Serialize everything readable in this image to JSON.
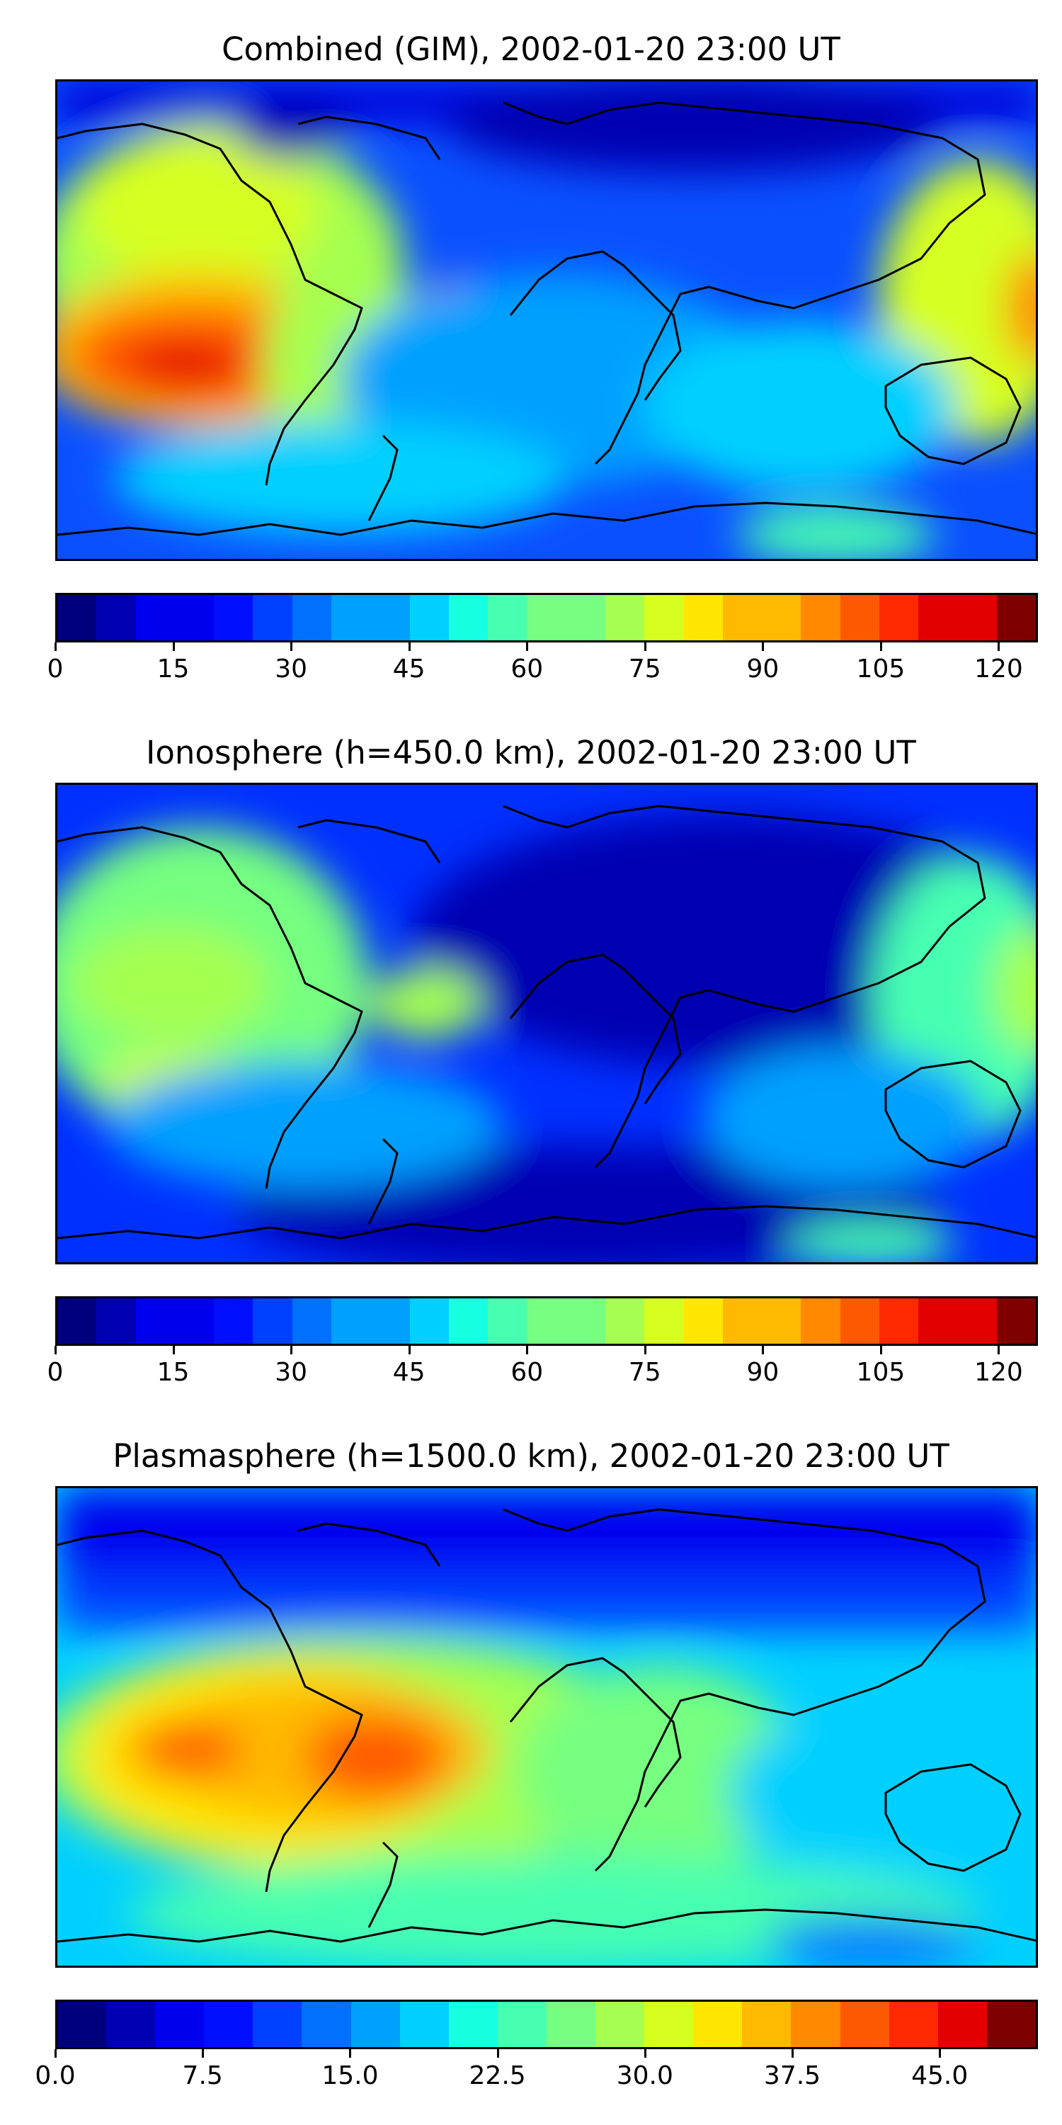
{
  "panels": [
    {
      "title": "Combined (GIM), 2002-01-20 23:00 UT",
      "colorbar": {
        "min": 0,
        "max": 125,
        "levels": 25,
        "ticks": [
          "0",
          "15",
          "30",
          "45",
          "60",
          "75",
          "90",
          "105",
          "120"
        ],
        "tick_values": [
          0,
          15,
          30,
          45,
          60,
          75,
          90,
          105,
          120
        ]
      }
    },
    {
      "title": "Ionosphere  (h=450.0 km), 2002-01-20 23:00 UT",
      "colorbar": {
        "min": 0,
        "max": 125,
        "levels": 25,
        "ticks": [
          "0",
          "15",
          "30",
          "45",
          "60",
          "75",
          "90",
          "105",
          "120"
        ],
        "tick_values": [
          0,
          15,
          30,
          45,
          60,
          75,
          90,
          105,
          120
        ]
      }
    },
    {
      "title": "Plasmasphere (h=1500.0 km), 2002-01-20 23:00 UT",
      "colorbar": {
        "min": 0,
        "max": 50,
        "levels": 20,
        "ticks": [
          "0.0",
          "7.5",
          "15.0",
          "22.5",
          "30.0",
          "37.5",
          "45.0"
        ],
        "tick_values": [
          0,
          7.5,
          15,
          22.5,
          30,
          37.5,
          45
        ]
      }
    }
  ],
  "colormap": [
    "#00007f",
    "#0000b2",
    "#0000ef",
    "#0010ff",
    "#0040ff",
    "#0070ff",
    "#00a0ff",
    "#00d0ff",
    "#16ffe1",
    "#46ffb1",
    "#76ff80",
    "#a6ff50",
    "#d6ff20",
    "#ffe600",
    "#ffb900",
    "#ff8900",
    "#ff5900",
    "#ff2900",
    "#e30000",
    "#7f0000"
  ]
}
